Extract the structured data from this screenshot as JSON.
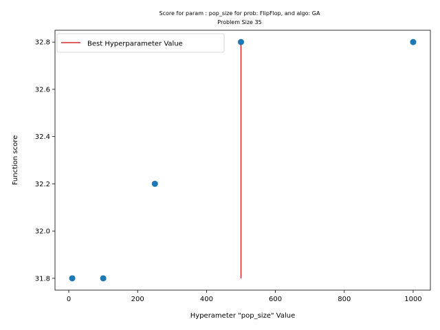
{
  "chart_data": {
    "type": "scatter",
    "title": "Score for param : pop_size for prob: FlipFlop, and algo: GA",
    "subtitle": "Problem Size 35",
    "xlabel": "Hyperameter \"pop_size\" Value",
    "ylabel": "Function score",
    "xlim": [
      -40,
      1050
    ],
    "ylim": [
      31.75,
      32.85
    ],
    "xticks": [
      0,
      200,
      400,
      600,
      800,
      1000
    ],
    "yticks": [
      31.8,
      32.0,
      32.2,
      32.4,
      32.6,
      32.8
    ],
    "xtick_labels": [
      "0",
      "200",
      "400",
      "600",
      "800",
      "1000"
    ],
    "ytick_labels": [
      "31.8",
      "32.0",
      "32.2",
      "32.4",
      "32.6",
      "32.8"
    ],
    "grid": false,
    "legend_position": "top-left",
    "series": [
      {
        "type": "scatter",
        "color": "#1f77b4",
        "points": [
          {
            "x": 10,
            "y": 31.8
          },
          {
            "x": 100,
            "y": 31.8
          },
          {
            "x": 250,
            "y": 32.2
          },
          {
            "x": 500,
            "y": 32.8
          },
          {
            "x": 1000,
            "y": 32.8
          }
        ]
      },
      {
        "name": "Best Hyperparameter Value",
        "type": "vline",
        "color": "#d62728",
        "x": 500,
        "y_from": 31.8,
        "y_to": 32.8
      }
    ]
  }
}
